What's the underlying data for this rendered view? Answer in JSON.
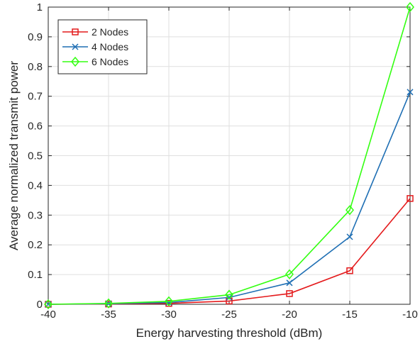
{
  "chart_data": {
    "type": "line",
    "title": "",
    "xlabel": "Energy harvesting threshold (dBm)",
    "ylabel": "Average normalized transmit power",
    "x": [
      -40,
      -35,
      -30,
      -25,
      -20,
      -15,
      -10
    ],
    "xlim": [
      -40,
      -10
    ],
    "ylim": [
      0,
      1
    ],
    "xticks": [
      -40,
      -35,
      -30,
      -25,
      -20,
      -15,
      -10
    ],
    "yticks": [
      0,
      0.1,
      0.2,
      0.3,
      0.4,
      0.5,
      0.6,
      0.7,
      0.8,
      0.9,
      1
    ],
    "xtick_labels": [
      "-40",
      "-35",
      "-30",
      "-25",
      "-20",
      "-15",
      "-10"
    ],
    "ytick_labels": [
      "0",
      "0.1",
      "0.2",
      "0.3",
      "0.4",
      "0.5",
      "0.6",
      "0.7",
      "0.8",
      "0.9",
      "1"
    ],
    "grid": true,
    "legend_position": "top-left",
    "series": [
      {
        "name": "2 Nodes",
        "color": "#e41a1c",
        "marker": "square",
        "values": [
          0.0,
          0.001,
          0.003,
          0.011,
          0.036,
          0.113,
          0.356
        ]
      },
      {
        "name": "4 Nodes",
        "color": "#1f6fb4",
        "marker": "x",
        "values": [
          0.0,
          0.002,
          0.006,
          0.023,
          0.072,
          0.227,
          0.714
        ]
      },
      {
        "name": "6 Nodes",
        "color": "#33ff11",
        "marker": "diamond",
        "values": [
          0.0,
          0.003,
          0.01,
          0.032,
          0.101,
          0.317,
          1.0
        ]
      }
    ]
  }
}
